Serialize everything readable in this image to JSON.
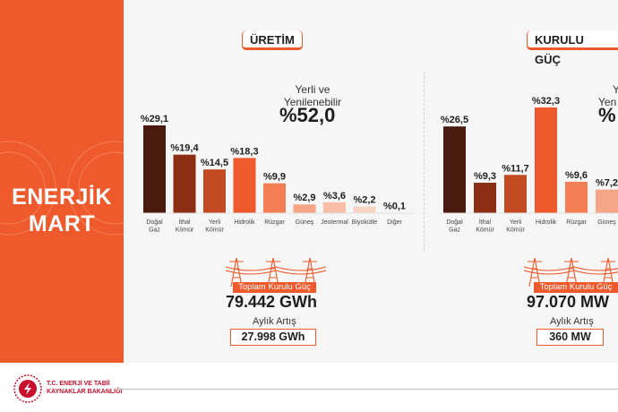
{
  "side_title_line1": "ENERJİK",
  "side_title_line2": "MART",
  "footer": {
    "line1": "T.C. ENERJİ VE TABİİ",
    "line2": "KAYNAKLAR BAKANLIĞI"
  },
  "colors": {
    "accent": "#ee5a2c",
    "dark": "#4a1a0e",
    "mid": "#8b2e14",
    "bar3": "#c44a22",
    "bar4": "#ef5a2c",
    "bar5": "#f47f55",
    "bar6": "#f6a686",
    "bar7": "#f8bea6",
    "bar8": "#fad4c3",
    "bar9": "#fce6dc"
  },
  "panels": [
    {
      "tab": "ÜRETİM",
      "yerli_label_line1": "Yerli ve",
      "yerli_label_line2": "Yenilenebilir",
      "yerli_value": "%52,0",
      "total_label": "Toplam Kurulu Güç",
      "total_value": "79.442 GWh",
      "aylik_label": "Aylık Artış",
      "aylik_value": "27.998 GWh"
    },
    {
      "tab": "KURULU GÜÇ",
      "yerli_label_line1": "Y",
      "yerli_label_line2": "Yen",
      "yerli_value": "%",
      "total_label": "Toplam Kurulu Güç",
      "total_value": "97.070 MW",
      "aylik_label": "Aylık Artış",
      "aylik_value": "360 MW"
    }
  ],
  "chart_data": [
    {
      "type": "bar",
      "categories": [
        [
          "Doğal",
          "Gaz"
        ],
        [
          "İthal",
          "Kömür"
        ],
        [
          "Yerli",
          "Kömür"
        ],
        [
          "Hidrolik"
        ],
        [
          "Rüzgar"
        ],
        [
          "Güneş"
        ],
        [
          "Jeotermal"
        ],
        [
          "Biyokütle"
        ],
        [
          "Diğer"
        ]
      ],
      "values": [
        29.1,
        19.4,
        14.5,
        18.3,
        9.9,
        2.9,
        3.6,
        2.2,
        0.1
      ],
      "value_labels": [
        "%29,1",
        "%19,4",
        "%14,5",
        "%18,3",
        "%9,9",
        "%2,9",
        "%3,6",
        "%2,2",
        "%0,1"
      ],
      "unit": "%"
    },
    {
      "type": "bar",
      "categories": [
        [
          "Doğal",
          "Gaz"
        ],
        [
          "İthal",
          "Kömür"
        ],
        [
          "Yerli",
          "Kömür"
        ],
        [
          "Hidrolik"
        ],
        [
          "Rüzgar"
        ],
        [
          "Güneş"
        ]
      ],
      "values": [
        26.5,
        9.3,
        11.7,
        32.3,
        9.6,
        7.2
      ],
      "value_labels": [
        "%26,5",
        "%9,3",
        "%11,7",
        "%32,3",
        "%9,6",
        "%7,2"
      ],
      "unit": "%"
    }
  ]
}
